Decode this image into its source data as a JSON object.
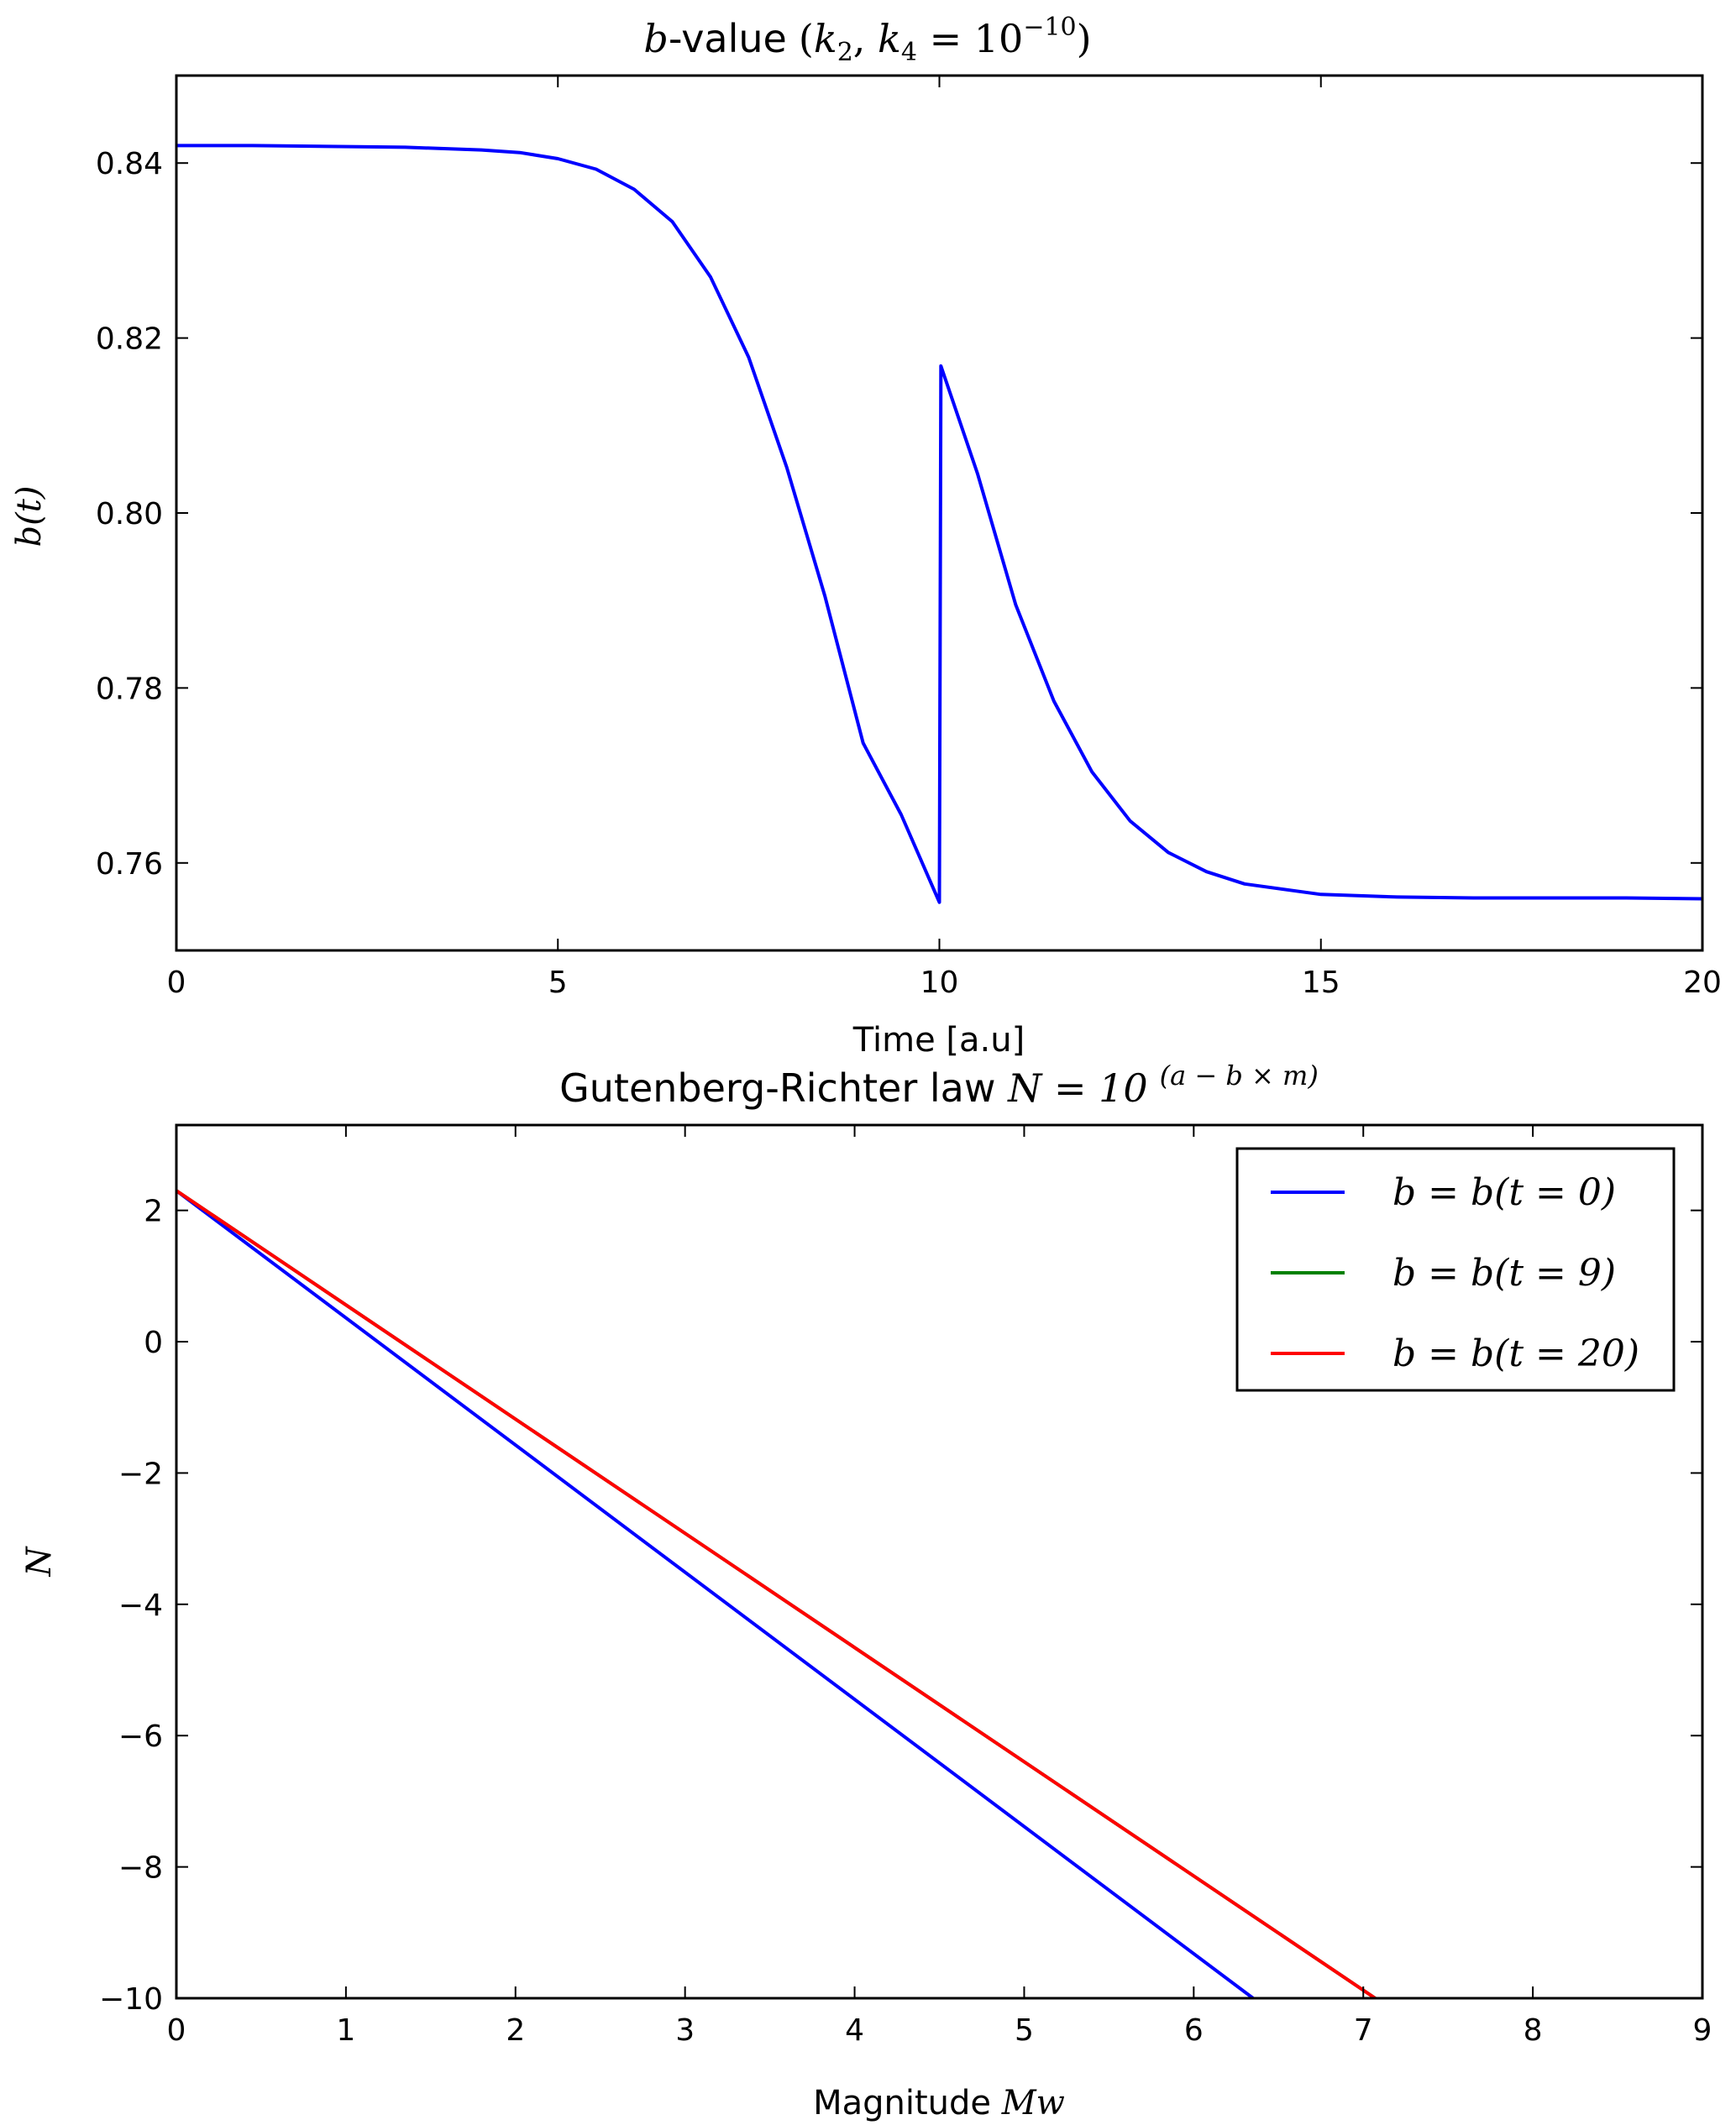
{
  "chart_data": [
    {
      "type": "line",
      "title": {
        "prefix": "b",
        "suffix": "-value",
        "math_open": "(",
        "k": "k",
        "sub2": "2",
        "comma": ", ",
        "sub4": "4",
        "eq": " = 10",
        "exponent": "−10",
        "math_close": ")"
      },
      "xlabel": "Time [a.u]",
      "ylabel": "b(t)",
      "xlim": [
        0,
        20
      ],
      "ylim": [
        0.75,
        0.85
      ],
      "xticks": [
        0,
        5,
        10,
        15,
        20
      ],
      "yticks": [
        0.76,
        0.78,
        0.8,
        0.82,
        0.84
      ],
      "ytick_labels": [
        "0.76",
        "0.78",
        "0.80",
        "0.82",
        "0.84"
      ],
      "grid": false,
      "series": [
        {
          "color": "#0000ff",
          "x": [
            0,
            1,
            2,
            3,
            4,
            4.5,
            5,
            5.5,
            6,
            6.5,
            7,
            7.5,
            8,
            8.5,
            9,
            9.5,
            10,
            10.02,
            10.5,
            11,
            11.5,
            12,
            12.5,
            13,
            13.5,
            14,
            15,
            16,
            17,
            18,
            19,
            20
          ],
          "y": [
            0.842,
            0.842,
            0.8419,
            0.8418,
            0.8415,
            0.8412,
            0.8405,
            0.8393,
            0.837,
            0.8333,
            0.827,
            0.8178,
            0.8052,
            0.7905,
            0.7737,
            0.7655,
            0.7555,
            0.8168,
            0.8045,
            0.7895,
            0.7785,
            0.7704,
            0.7648,
            0.7612,
            0.759,
            0.7576,
            0.7564,
            0.7561,
            0.756,
            0.756,
            0.756,
            0.7559
          ]
        }
      ]
    },
    {
      "type": "line",
      "title": {
        "text": "Gutenberg-Richter law ",
        "math": "N = 10",
        "exponent": "(a − b × m)"
      },
      "xlabel": {
        "text": "Magnitude ",
        "math": "Mw"
      },
      "ylabel": "N",
      "xlim": [
        0,
        9
      ],
      "ylim": [
        -10,
        3.3
      ],
      "xticks": [
        0,
        1,
        2,
        3,
        4,
        5,
        6,
        7,
        8,
        9
      ],
      "yticks": [
        -10,
        -8,
        -6,
        -4,
        -2,
        0,
        2
      ],
      "ytick_labels": [
        "−10",
        "−8",
        "−6",
        "−4",
        "−2",
        "0",
        "2"
      ],
      "grid": false,
      "legend_placement": "top-right",
      "series": [
        {
          "name": "b = b(t = 0)",
          "color": "#0000ff",
          "x": [
            0,
            6.35
          ],
          "y": [
            2.3,
            -10
          ]
        },
        {
          "name": "b = b(t = 9)",
          "color": "#008000",
          "x": [
            0,
            7.07
          ],
          "y": [
            2.3,
            -10
          ]
        },
        {
          "name": "b = b(t = 20)",
          "color": "#ff0000",
          "x": [
            0,
            7.07
          ],
          "y": [
            2.3,
            -10
          ]
        }
      ]
    }
  ]
}
